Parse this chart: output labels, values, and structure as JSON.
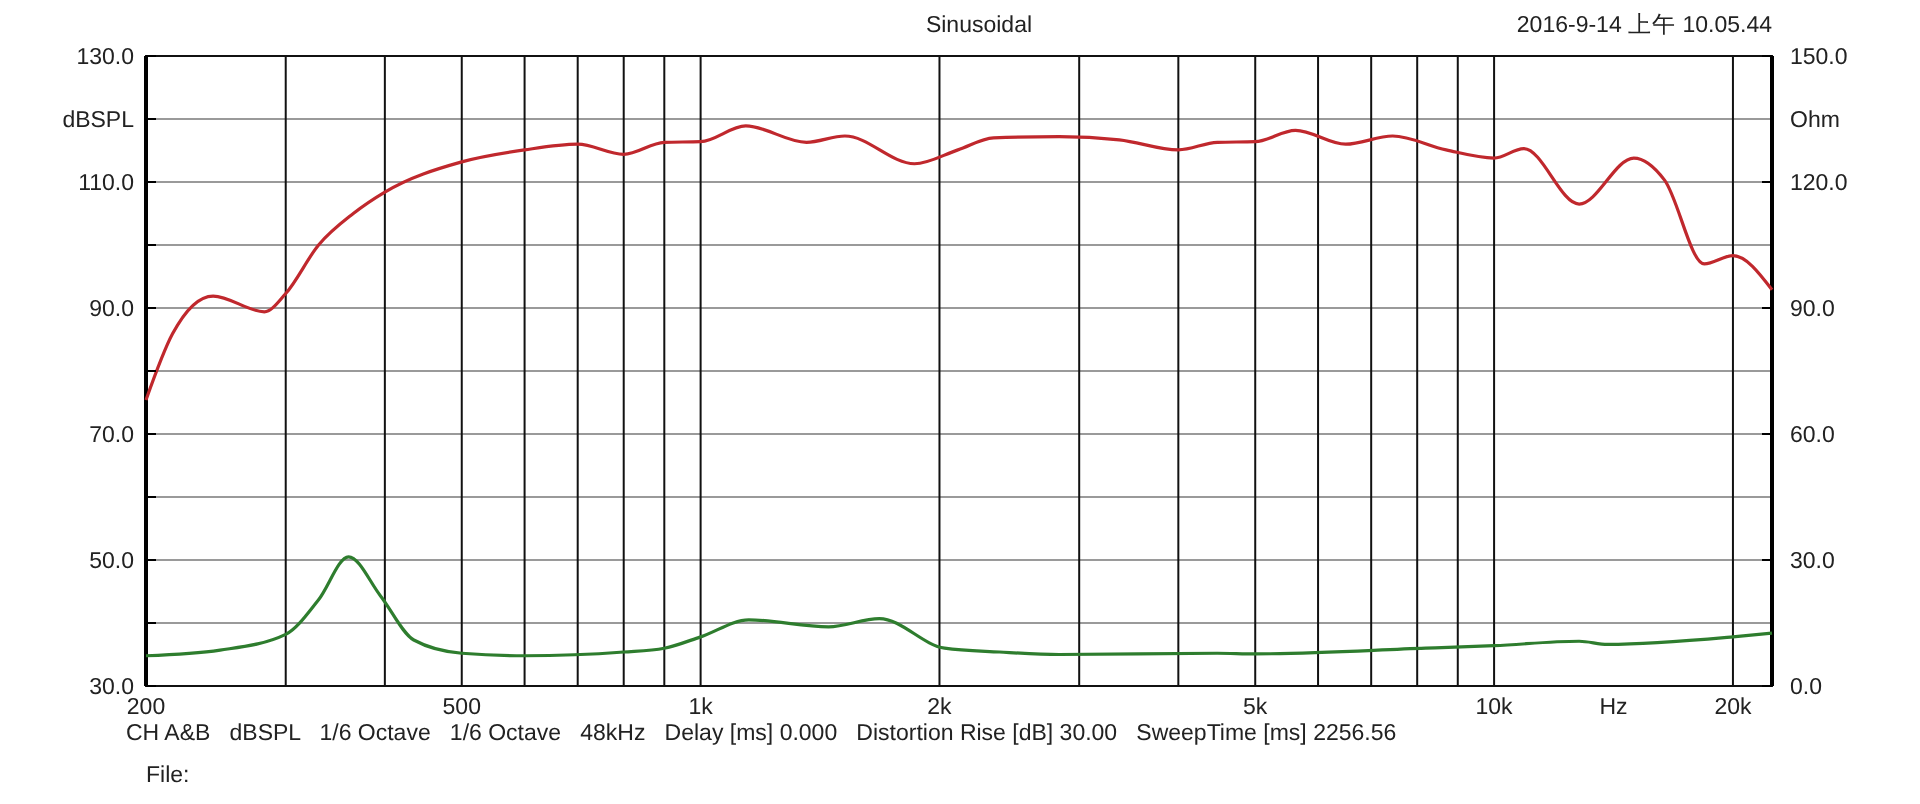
{
  "chart_data": {
    "type": "line",
    "title": "Sinusoidal",
    "subtitle": "2016-9-14 上午 10.05.44",
    "ylabel": "dBSPL",
    "y2label": "Ohm",
    "xlabel": "Hz",
    "annotations": [
      "CH A&B   dBSPL   1/6 Octave   1/6 Octave   48kHz   Delay [ms] 0.000   Distortion Rise [dB] 30.00   SweepTime [ms] 2256.56",
      "File:"
    ],
    "log": "x",
    "grid": true,
    "line_style": "solid",
    "marker": "none",
    "xlim": [
      200,
      22400
    ],
    "xticks": [
      {
        "value": 200,
        "label": "200"
      },
      {
        "value": 300,
        "label": null
      },
      {
        "value": 400,
        "label": null
      },
      {
        "value": 500,
        "label": "500"
      },
      {
        "value": 600,
        "label": null
      },
      {
        "value": 700,
        "label": null
      },
      {
        "value": 800,
        "label": null
      },
      {
        "value": 900,
        "label": null
      },
      {
        "value": 1000,
        "label": "1k"
      },
      {
        "value": 2000,
        "label": "2k"
      },
      {
        "value": 3000,
        "label": null
      },
      {
        "value": 4000,
        "label": null
      },
      {
        "value": 5000,
        "label": "5k"
      },
      {
        "value": 6000,
        "label": null
      },
      {
        "value": 7000,
        "label": null
      },
      {
        "value": 8000,
        "label": null
      },
      {
        "value": 9000,
        "label": null
      },
      {
        "value": 10000,
        "label": "10k"
      },
      {
        "value": 20000,
        "label": "20k"
      }
    ],
    "ylim": [
      30,
      130
    ],
    "yticks": [
      {
        "value": 30,
        "label": "30.0"
      },
      {
        "value": 40,
        "label": null
      },
      {
        "value": 50,
        "label": "50.0"
      },
      {
        "value": 60,
        "label": null
      },
      {
        "value": 70,
        "label": "70.0"
      },
      {
        "value": 80,
        "label": null
      },
      {
        "value": 90,
        "label": "90.0"
      },
      {
        "value": 100,
        "label": null
      },
      {
        "value": 110,
        "label": "110.0"
      },
      {
        "value": 120,
        "label": null
      },
      {
        "value": 130,
        "label": "130.0"
      }
    ],
    "y2lim": [
      0,
      150
    ],
    "y2ticks": [
      {
        "value": 0,
        "label": "0.0"
      },
      {
        "value": 30,
        "label": "30.0"
      },
      {
        "value": 60,
        "label": "60.0"
      },
      {
        "value": 90,
        "label": "90.0"
      },
      {
        "value": 120,
        "label": "120.0"
      },
      {
        "value": 150,
        "label": "150.0"
      }
    ],
    "series": [
      {
        "color": "#c0282d",
        "x": [
          200,
          216,
          243,
          282,
          300,
          330,
          365,
          400,
          500,
          600,
          700,
          800,
          900,
          1000,
          1140,
          1360,
          1520,
          1860,
          2110,
          2340,
          2830,
          3370,
          4000,
          4480,
          5000,
          5620,
          6500,
          7450,
          8700,
          10000,
          10900,
          12800,
          15000,
          16400,
          18400,
          20000,
          22400
        ],
        "values": [
          75.4,
          85.9,
          91.9,
          89.4,
          92.3,
          100,
          105,
          108.4,
          113.2,
          115.1,
          116,
          114.4,
          116.3,
          116.4,
          118.9,
          116.3,
          117.3,
          112.9,
          115.1,
          117,
          117.2,
          116.7,
          115.1,
          116.3,
          116.4,
          118.2,
          116,
          117.3,
          115.1,
          113.8,
          115.3,
          106.5,
          113.8,
          110.3,
          97,
          98.3,
          92.9
        ]
      },
      {
        "color": "#2e7d2e",
        "x": [
          200,
          248,
          300,
          330,
          360,
          395,
          435,
          500,
          600,
          800,
          900,
          1000,
          1150,
          1450,
          1680,
          2030,
          2380,
          2830,
          4480,
          5000,
          8200,
          10000,
          12800,
          13900,
          20000,
          22400
        ],
        "values": [
          34.8,
          35.7,
          38.2,
          43.7,
          50.5,
          44.3,
          37.3,
          35.2,
          34.8,
          35.4,
          36,
          37.8,
          40.5,
          39.4,
          40.7,
          36,
          35.4,
          35,
          35.2,
          35.1,
          36,
          36.4,
          37.1,
          36.6,
          37.8,
          38.4
        ]
      }
    ]
  }
}
